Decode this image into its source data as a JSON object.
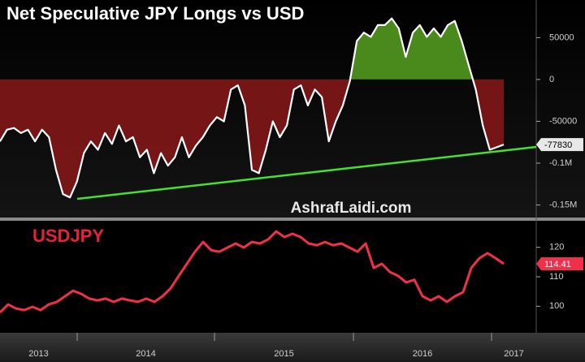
{
  "chart_data": [
    {
      "type": "line",
      "title": "Net Speculative JPY Longs vs USD",
      "color": "#ffffff",
      "fill_colors": {
        "positive": "#4a8a1c",
        "negative": "#8a1818"
      },
      "values": [
        -74000,
        -60000,
        -58000,
        -64000,
        -60000,
        -74000,
        -60000,
        -69000,
        -108000,
        -137000,
        -141000,
        -122000,
        -88000,
        -74000,
        -84000,
        -64000,
        -77000,
        -55000,
        -74000,
        -69000,
        -93000,
        -84000,
        -112000,
        -88000,
        -103000,
        -93000,
        -69000,
        -93000,
        -79000,
        -69000,
        -55000,
        -45000,
        -50000,
        -12000,
        -7000,
        -31000,
        -108000,
        -112000,
        -84000,
        -50000,
        -69000,
        -55000,
        -12000,
        -7000,
        -31000,
        -12000,
        -21000,
        -74000,
        -50000,
        -31000,
        -2000,
        46000,
        56000,
        51000,
        65000,
        65000,
        73000,
        61000,
        27000,
        56000,
        65000,
        51000,
        61000,
        51000,
        65000,
        70000,
        46000,
        17000,
        -12000,
        -55000,
        -84000,
        -81000,
        -77830
      ],
      "ylim": [
        -165000,
        95000
      ],
      "yticks": [
        50000,
        0,
        -50000,
        {
          "value": -100000,
          "label": "-0.1M"
        },
        {
          "value": -150000,
          "label": "-0.15M"
        }
      ],
      "watermark": "AshrafLaidi.com"
    },
    {
      "type": "line",
      "title": "USDJPY",
      "color": "#f0304a",
      "values": [
        97.9,
        100.6,
        99.2,
        98.7,
        99.8,
        98.7,
        100.6,
        101.5,
        103.4,
        105.3,
        104.2,
        102.6,
        102,
        102.6,
        101.5,
        102.6,
        102,
        101.5,
        102.6,
        101.5,
        103.4,
        106.1,
        110.3,
        114.4,
        118.5,
        121.8,
        119,
        118.5,
        119.9,
        121.3,
        119.9,
        121.8,
        121.3,
        122.7,
        125.4,
        123.5,
        124.6,
        123.5,
        121.3,
        120.7,
        121.8,
        120.7,
        121.3,
        119.9,
        118.5,
        121.3,
        113,
        114.4,
        111.6,
        110.3,
        108.1,
        109,
        103.4,
        102,
        103.4,
        101.5,
        103.4,
        104.8,
        113,
        116.3,
        118,
        116.3,
        114.41
      ],
      "ylim": [
        91,
        129
      ],
      "yticks": [
        120,
        110,
        100
      ],
      "x_labels": [
        "2013",
        "2014",
        "2015",
        "2016",
        "2017"
      ]
    }
  ]
}
